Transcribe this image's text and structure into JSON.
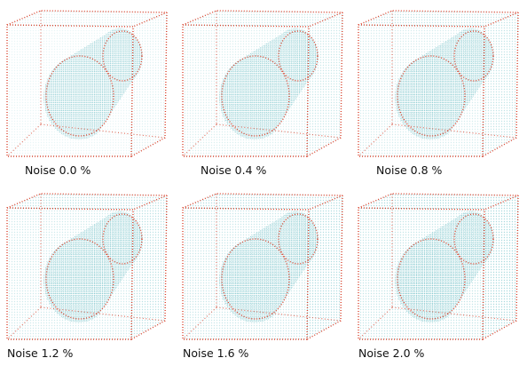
{
  "panels": [
    {
      "label": "Noise 0.0 %"
    },
    {
      "label": "Noise 0.4 %"
    },
    {
      "label": "Noise 0.8 %"
    },
    {
      "label": "Noise 1.2 %"
    },
    {
      "label": "Noise 1.6 %"
    },
    {
      "label": "Noise 2.0 %"
    }
  ]
}
